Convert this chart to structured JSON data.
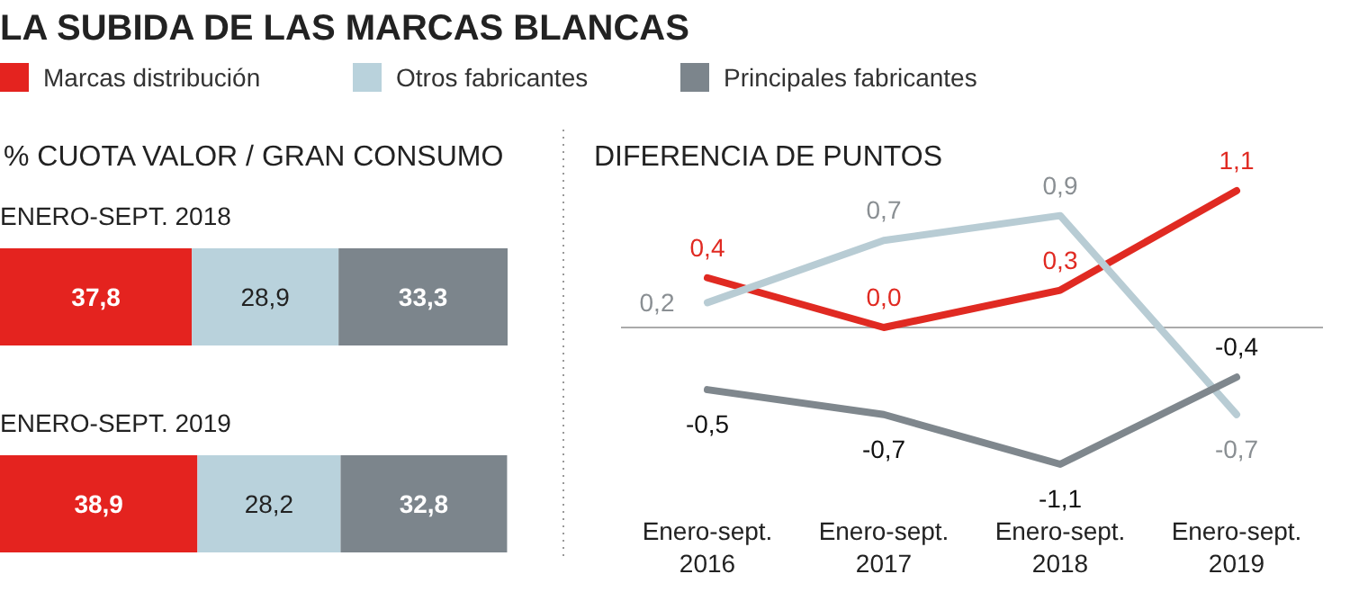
{
  "chart_data": [
    {
      "type": "bar",
      "orientation": "horizontal",
      "stacked": true,
      "title": "LA SUBIDA DE LAS MARCAS BLANCAS",
      "subtitle": "% CUOTA VALOR / GRAN CONSUMO",
      "categories": [
        "ENERO-SEPT. 2018",
        "ENERO-SEPT. 2019"
      ],
      "legend": "top",
      "series": [
        {
          "name": "Marcas distribución",
          "color": "#e4231f",
          "values": [
            37.8,
            38.9
          ],
          "value_labels": [
            "37,8",
            "38,9"
          ]
        },
        {
          "name": "Otros fabricantes",
          "color": "#b9d2dc",
          "values": [
            28.9,
            28.2
          ],
          "value_labels": [
            "28,9",
            "28,2"
          ]
        },
        {
          "name": "Principales fabricantes",
          "color": "#7c858c",
          "values": [
            33.3,
            32.8
          ],
          "value_labels": [
            "33,3",
            "32,8"
          ]
        }
      ]
    },
    {
      "type": "line",
      "title": "DIFERENCIA DE PUNTOS",
      "categories": [
        "Enero-sept. 2016",
        "Enero-sept. 2017",
        "Enero-sept. 2018",
        "Enero-sept. 2019"
      ],
      "tick_labels": "x",
      "marker": "none",
      "series": [
        {
          "color": "#e02a22",
          "values": [
            0.4,
            0.0,
            0.3,
            1.1
          ],
          "value_labels": [
            "0,4",
            "0,0",
            "0,3",
            "1,1"
          ]
        },
        {
          "color": "#b8ccd4",
          "values": [
            0.2,
            0.7,
            0.9,
            -0.7
          ],
          "value_labels": [
            "0,2",
            "0,7",
            "0,9",
            "-0,7"
          ]
        },
        {
          "color": "#7f878d",
          "values": [
            -0.5,
            -0.7,
            -1.1,
            -0.4
          ],
          "value_labels": [
            "-0,5",
            "-0,7",
            "-1,1",
            "-0,4"
          ]
        }
      ]
    }
  ]
}
